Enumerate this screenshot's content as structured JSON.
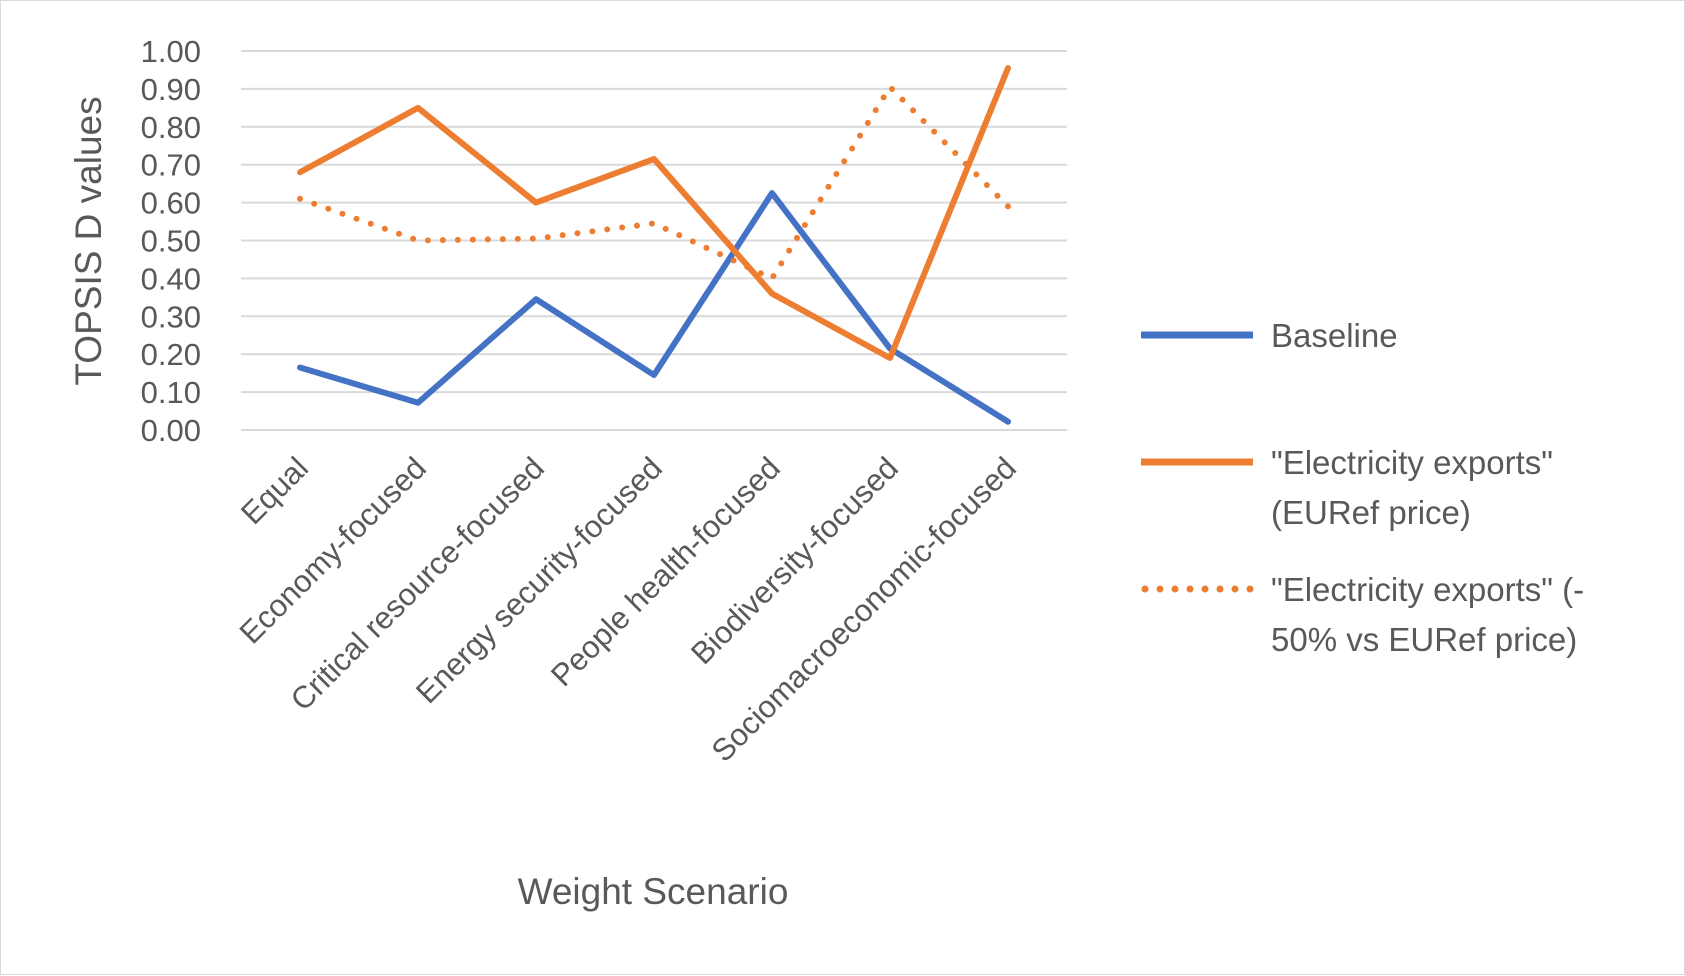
{
  "chart_data": {
    "type": "line",
    "title": "",
    "xlabel": "Weight Scenario",
    "ylabel": "TOPSIS D values",
    "ylim": [
      0,
      1
    ],
    "yticks": [
      "0.00",
      "0.10",
      "0.20",
      "0.30",
      "0.40",
      "0.50",
      "0.60",
      "0.70",
      "0.80",
      "0.90",
      "1.00"
    ],
    "grid": true,
    "legend_position": "right",
    "categories": [
      "Equal",
      "Economy-focused",
      "Critical resource-focused",
      "Energy security-focused",
      "People health-focused",
      "Biodiversity-focused",
      "Sociomacroeconomic-focused"
    ],
    "series": [
      {
        "name": "Baseline",
        "legend_lines": [
          "Baseline"
        ],
        "color": "#4472C4",
        "style": "solid",
        "values": [
          0.165,
          0.072,
          0.345,
          0.145,
          0.625,
          0.215,
          0.022
        ]
      },
      {
        "name": "\"Electricity exports\" (EURef price)",
        "legend_lines": [
          "\"Electricity exports\"",
          "(EURef price)"
        ],
        "color": "#ED7D31",
        "style": "solid",
        "values": [
          0.68,
          0.85,
          0.6,
          0.715,
          0.36,
          0.19,
          0.955
        ]
      },
      {
        "name": "\"Electricity exports\" (-50% vs EURef price)",
        "legend_lines": [
          "\"Electricity exports\" (-",
          "50% vs EURef price)"
        ],
        "color": "#ED7D31",
        "style": "dotted",
        "values": [
          0.61,
          0.5,
          0.505,
          0.545,
          0.4,
          0.905,
          0.59
        ]
      }
    ]
  }
}
